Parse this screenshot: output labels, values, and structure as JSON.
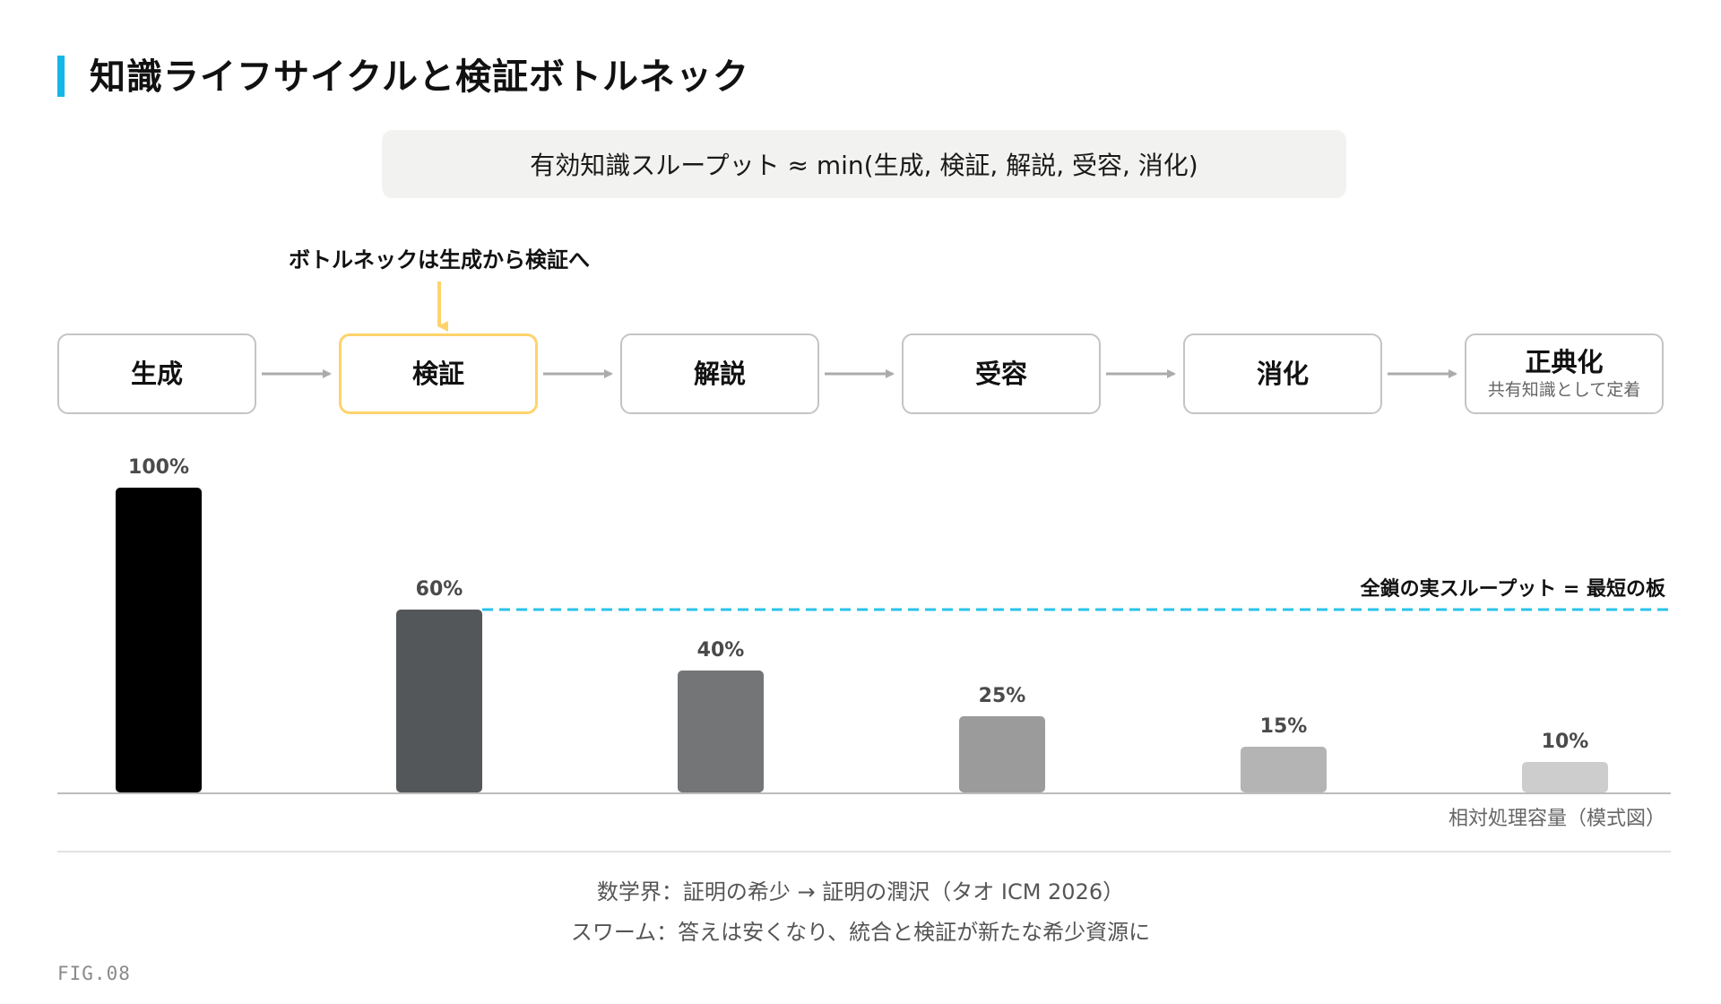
{
  "title": "知識ライフサイクルと検証ボトルネック",
  "formula": "有効知識スループット ≈ min(生成, 検証, 解説, 受容, 消化)",
  "callout": "ボトルネックは生成から検証へ",
  "stages": [
    {
      "label": "生成",
      "sub": ""
    },
    {
      "label": "検証",
      "sub": ""
    },
    {
      "label": "解説",
      "sub": ""
    },
    {
      "label": "受容",
      "sub": ""
    },
    {
      "label": "消化",
      "sub": ""
    },
    {
      "label": "正典化",
      "sub": "共有知識として定着"
    }
  ],
  "highlight_color": "#ffd36b",
  "threshold_color": "#29c3ea",
  "chart_data": {
    "type": "bar",
    "categories": [
      "生成",
      "検証",
      "解説",
      "受容",
      "消化",
      "正典化"
    ],
    "values": [
      100,
      60,
      40,
      25,
      15,
      10
    ],
    "value_labels": [
      "100%",
      "60%",
      "40%",
      "25%",
      "15%",
      "10%"
    ],
    "colors": [
      "#000000",
      "#54575a",
      "#737576",
      "#9b9b9b",
      "#b4b4b4",
      "#cdcdcd"
    ],
    "ylim": [
      0,
      100
    ],
    "threshold": {
      "value": 60,
      "label": "全鎖の実スループット = 最短の板"
    },
    "xlabel": "相対処理容量（模式図）"
  },
  "footnotes": [
    "数学界：証明の希少 → 証明の潤沢（タオ ICM 2026）",
    "スワーム：答えは安くなり、統合と検証が新たな希少資源に"
  ],
  "fig_label": "FIG.08"
}
